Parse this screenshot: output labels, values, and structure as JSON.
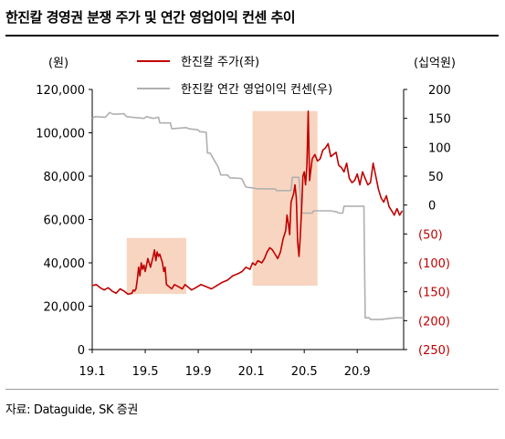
{
  "title": "한진칼 경영권 분쟁 주가 및 연간 영업이익 컨센 추이",
  "source": "자료: Dataguide, SK 증권",
  "chart_data": {
    "type": "line",
    "left_axis_unit": "(원)",
    "right_axis_unit": "(십억원)",
    "left_ylim": [
      0,
      120000
    ],
    "left_ticks": [
      "120,000",
      "100,000",
      "80,000",
      "60,000",
      "40,000",
      "20,000",
      "0"
    ],
    "right_ylim": [
      -250,
      200
    ],
    "right_ticks": [
      "200",
      "150",
      "100",
      "50",
      "0",
      "(50)",
      "(100)",
      "(150)",
      "(200)",
      "(250)"
    ],
    "x_ticks": [
      "19.1",
      "19.5",
      "19.9",
      "20.1",
      "20.5",
      "20.9"
    ],
    "x_tick_positions": [
      0,
      4,
      8,
      12,
      16,
      20
    ],
    "x_range": [
      0,
      23.5
    ],
    "colors": {
      "price": "#c00000",
      "consensus": "#b0b0b0",
      "highlight": "#f8d5c1",
      "negative_tick": "#c00000"
    },
    "highlights": [
      {
        "x": [
          2.6,
          7.1
        ],
        "y": [
          0,
          51500
        ]
      },
      {
        "x": [
          12.1,
          17.0
        ],
        "y": [
          0,
          110000
        ]
      }
    ],
    "series": [
      {
        "name": "한진칼 주가(좌)",
        "axis": "left",
        "x": [
          0,
          0.3,
          0.6,
          0.9,
          1.2,
          1.5,
          1.8,
          2.1,
          2.4,
          2.7,
          3.0,
          3.1,
          3.2,
          3.3,
          3.4,
          3.5,
          3.6,
          3.7,
          3.8,
          3.9,
          4.0,
          4.2,
          4.4,
          4.6,
          4.7,
          4.8,
          4.9,
          5.0,
          5.1,
          5.3,
          5.4,
          5.5,
          5.6,
          5.8,
          6.0,
          6.2,
          6.5,
          6.8,
          7.0,
          7.2,
          7.5,
          7.8,
          8.2,
          8.6,
          9.0,
          9.4,
          9.8,
          10.2,
          10.6,
          11.0,
          11.3,
          11.6,
          11.9,
          12.1,
          12.3,
          12.5,
          12.8,
          13.0,
          13.2,
          13.4,
          13.6,
          13.8,
          14.0,
          14.2,
          14.4,
          14.6,
          14.7,
          14.8,
          14.9,
          15.0,
          15.1,
          15.2,
          15.3,
          15.4,
          15.5,
          15.6,
          15.7,
          15.8,
          15.9,
          16.0,
          16.1,
          16.2,
          16.3,
          16.4,
          16.5,
          16.6,
          16.8,
          17.0,
          17.2,
          17.4,
          17.6,
          17.8,
          18.0,
          18.2,
          18.4,
          18.6,
          18.8,
          19.0,
          19.2,
          19.4,
          19.6,
          19.8,
          20.0,
          20.2,
          20.4,
          20.6,
          20.8,
          21.0,
          21.2,
          21.4,
          21.6,
          21.8,
          22.0,
          22.2,
          22.4,
          22.6,
          22.8,
          23.0,
          23.2,
          23.4
        ],
        "y": [
          29500,
          30000,
          28500,
          27500,
          28500,
          27000,
          26000,
          28000,
          27000,
          25500,
          26000,
          27500,
          27000,
          28000,
          32000,
          38000,
          34000,
          40000,
          37000,
          39000,
          36000,
          42000,
          38000,
          43000,
          46000,
          41000,
          45000,
          43000,
          44000,
          40000,
          36000,
          38000,
          30000,
          29000,
          28000,
          30000,
          29000,
          28000,
          30000,
          29000,
          27500,
          28500,
          30000,
          29000,
          28000,
          29500,
          31000,
          32000,
          34000,
          35000,
          36000,
          38000,
          37000,
          40000,
          39000,
          41000,
          40000,
          42000,
          45000,
          47000,
          46000,
          44000,
          42000,
          45000,
          51000,
          55000,
          62000,
          58000,
          53000,
          68000,
          70000,
          72000,
          76000,
          70000,
          50000,
          43000,
          52000,
          65000,
          80000,
          82000,
          76000,
          85000,
          110000,
          78000,
          83000,
          88000,
          90000,
          87000,
          88000,
          92000,
          93000,
          95000,
          89000,
          90000,
          91000,
          85000,
          84000,
          82000,
          86000,
          79000,
          77000,
          78000,
          81000,
          76000,
          82000,
          79000,
          76000,
          77000,
          86000,
          80000,
          74000,
          70000,
          68000,
          71000,
          66000,
          64000,
          62000,
          65000,
          62000,
          64000
        ]
      },
      {
        "name": "한진칼 연간 영업이익 컨센(우)",
        "axis": "right",
        "x": [
          0,
          0.2,
          1.0,
          1.3,
          1.6,
          2.4,
          2.6,
          3.0,
          3.9,
          4.1,
          4.6,
          5.0,
          5.1,
          5.9,
          6.0,
          7.1,
          7.3,
          8.0,
          8.1,
          8.6,
          8.7,
          8.9,
          9.5,
          9.7,
          10.2,
          10.4,
          10.6,
          11.2,
          11.3,
          11.6,
          12.0,
          12.5,
          13.0,
          13.8,
          13.9,
          14.9,
          15.0,
          15.1,
          15.6,
          15.8,
          16.6,
          16.7,
          18.0,
          18.5,
          18.6,
          18.9,
          19.0,
          20.5,
          20.6,
          20.9,
          21.0,
          21.8,
          22.5,
          23.0,
          23.5
        ],
        "y": [
          150,
          153,
          152,
          160,
          157,
          158,
          153,
          152,
          150,
          153,
          150,
          152,
          142,
          142,
          132,
          134,
          132,
          130,
          127,
          126,
          90,
          90,
          66,
          52,
          52,
          47,
          47,
          46,
          45,
          31,
          30,
          28,
          28,
          28,
          25,
          25,
          25,
          48,
          48,
          -14,
          -14,
          -10,
          -10,
          -12,
          -14,
          -14,
          -2,
          -2,
          -195,
          -195,
          -198,
          -198,
          -196,
          -195,
          -195
        ]
      }
    ]
  }
}
